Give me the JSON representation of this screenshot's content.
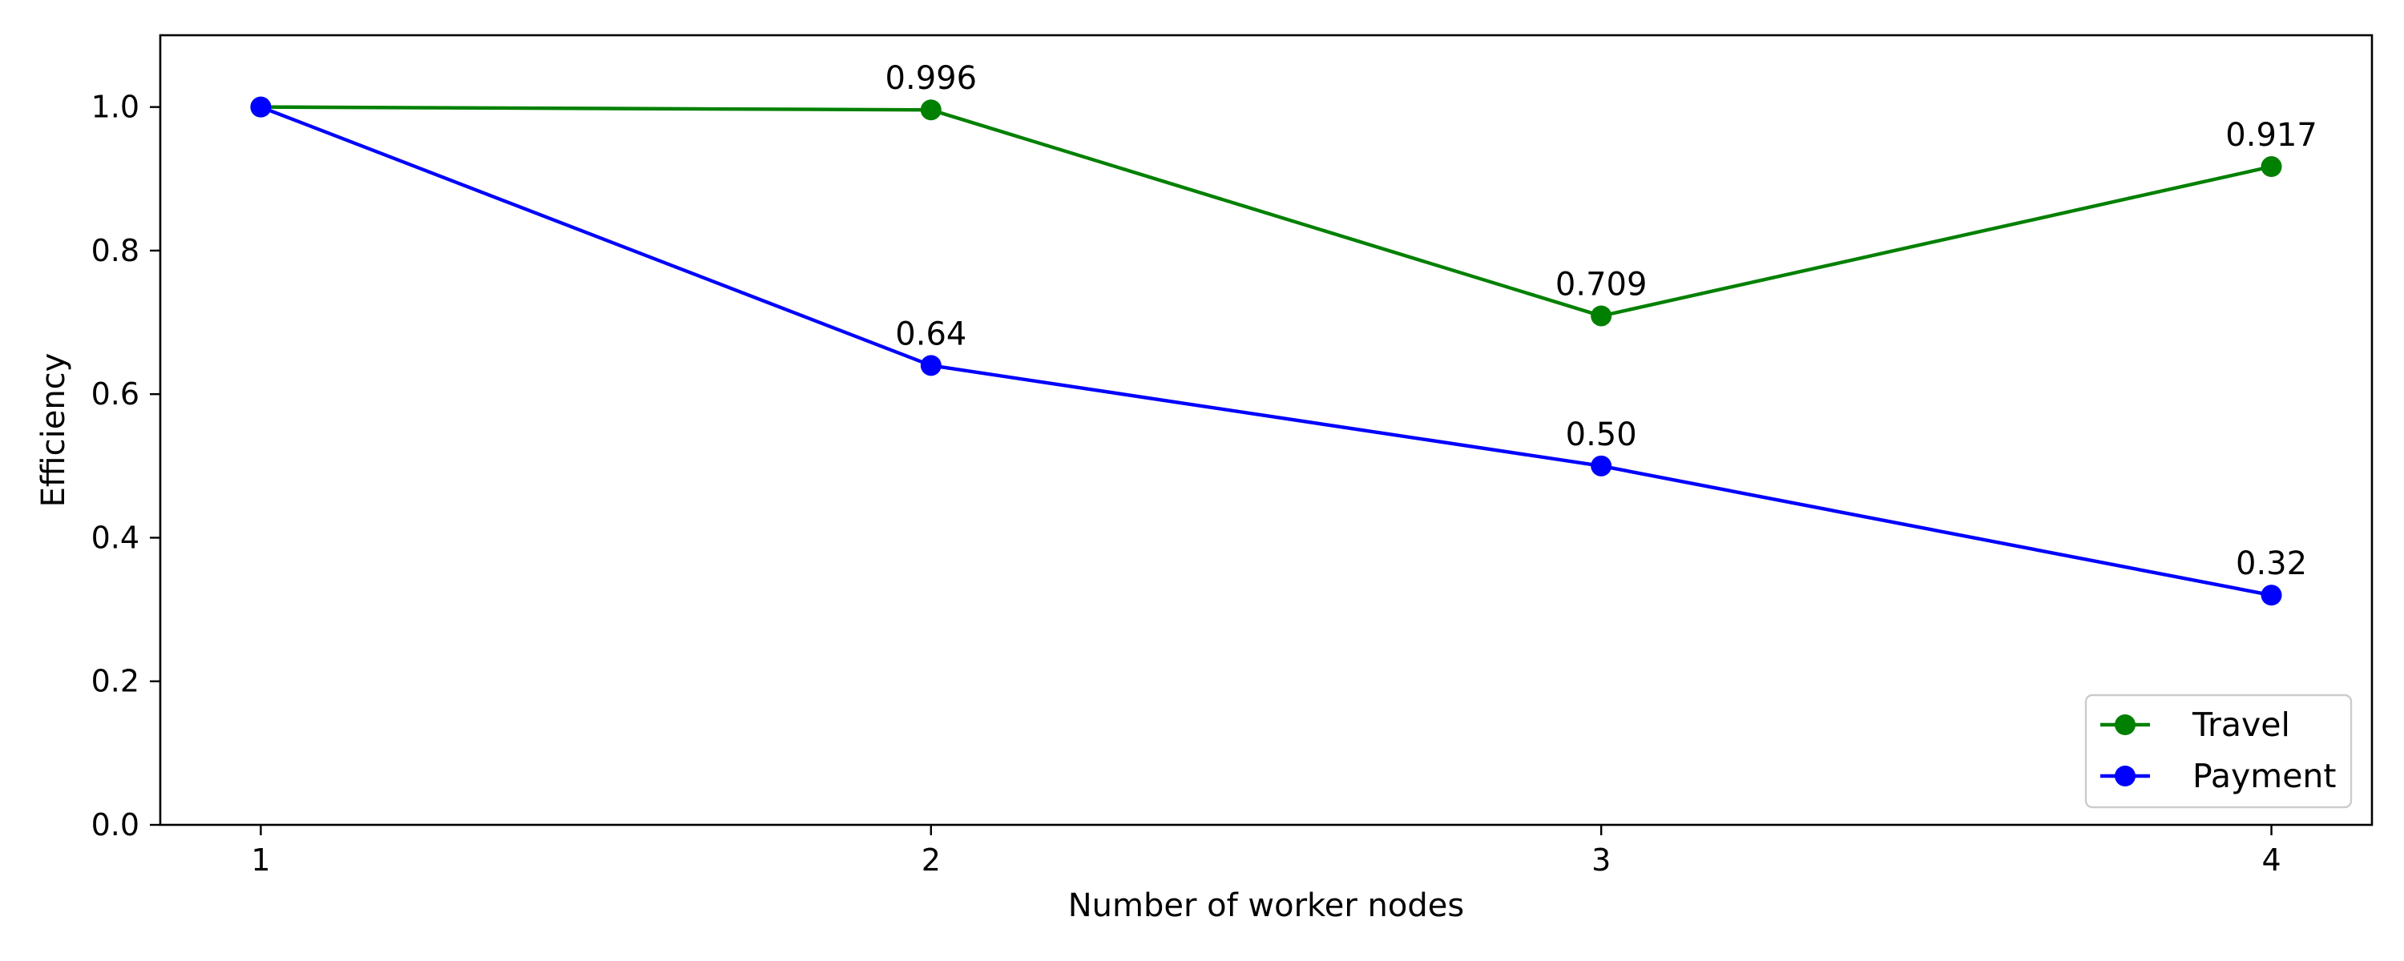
{
  "chart_data": {
    "type": "line",
    "title": "",
    "xlabel": "Number of worker nodes",
    "ylabel": "Efficiency",
    "x": [
      1,
      2,
      3,
      4
    ],
    "xticks": [
      "1",
      "2",
      "3",
      "4"
    ],
    "yticks": [
      "0.0",
      "0.2",
      "0.4",
      "0.6",
      "0.8",
      "1.0"
    ],
    "xlim": [
      0.85,
      4.15
    ],
    "ylim": [
      0.0,
      1.1
    ],
    "grid": false,
    "legend_position": "lower-right",
    "series": [
      {
        "name": "Travel",
        "color": "#008000",
        "values": [
          1.0,
          0.996,
          0.709,
          0.917
        ],
        "labels": [
          "",
          "0.996",
          "0.709",
          "0.917"
        ]
      },
      {
        "name": "Payment",
        "color": "#0000ff",
        "values": [
          1.0,
          0.64,
          0.5,
          0.32
        ],
        "labels": [
          "",
          "0.64",
          "0.50",
          "0.32"
        ]
      }
    ]
  }
}
